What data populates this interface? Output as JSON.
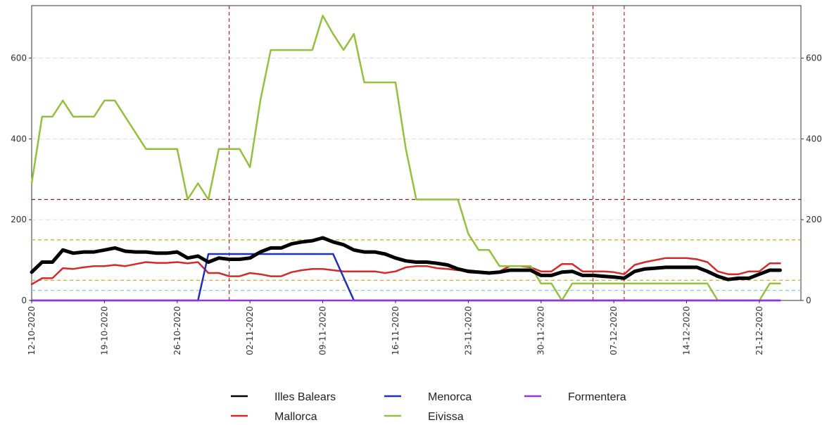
{
  "chart_data": {
    "type": "line",
    "title": "",
    "xlabel": "",
    "ylabel": "",
    "x_start": "2020-10-12",
    "x_end": "2020-12-25",
    "ylim": [
      0,
      730
    ],
    "y_ticks": [
      0,
      200,
      400,
      600
    ],
    "y_tick_labels": [
      "0",
      "200",
      "400",
      "600"
    ],
    "x_ticks": [
      "2020-10-12",
      "2020-10-19",
      "2020-10-26",
      "2020-11-02",
      "2020-11-09",
      "2020-11-16",
      "2020-11-23",
      "2020-11-30",
      "2020-12-07",
      "2020-12-14",
      "2020-12-21"
    ],
    "x_tick_labels": [
      "12-10-2020",
      "19-10-2020",
      "26-10-2020",
      "02-11-2020",
      "09-11-2020",
      "16-11-2020",
      "23-11-2020",
      "30-11-2020",
      "07-12-2020",
      "14-12-2020",
      "21-12-2020"
    ],
    "grid": "horizontal dashed",
    "legend": "bottom",
    "reference_lines_y": [
      {
        "value": 250,
        "color": "#8b1a1a"
      },
      {
        "value": 150,
        "color": "#d4a017"
      },
      {
        "value": 50,
        "color": "#d4a017"
      },
      {
        "value": 25,
        "color": "#7fd6c9"
      }
    ],
    "reference_lines_x": [
      {
        "value": "2020-10-31",
        "color": "#cc2222"
      },
      {
        "value": "2020-12-05",
        "color": "#cc2222"
      },
      {
        "value": "2020-12-08",
        "color": "#cc2222"
      }
    ],
    "series": [
      {
        "name": "Illes Balears",
        "color": "#000000",
        "width": 5,
        "points": [
          [
            "2020-10-12",
            70
          ],
          [
            "2020-10-13",
            95
          ],
          [
            "2020-10-14",
            95
          ],
          [
            "2020-10-15",
            125
          ],
          [
            "2020-10-16",
            117
          ],
          [
            "2020-10-17",
            120
          ],
          [
            "2020-10-18",
            120
          ],
          [
            "2020-10-19",
            125
          ],
          [
            "2020-10-20",
            130
          ],
          [
            "2020-10-21",
            122
          ],
          [
            "2020-10-22",
            120
          ],
          [
            "2020-10-23",
            120
          ],
          [
            "2020-10-24",
            117
          ],
          [
            "2020-10-25",
            117
          ],
          [
            "2020-10-26",
            120
          ],
          [
            "2020-10-27",
            105
          ],
          [
            "2020-10-28",
            110
          ],
          [
            "2020-10-29",
            95
          ],
          [
            "2020-10-30",
            105
          ],
          [
            "2020-10-31",
            102
          ],
          [
            "2020-11-01",
            102
          ],
          [
            "2020-11-02",
            105
          ],
          [
            "2020-11-03",
            120
          ],
          [
            "2020-11-04",
            130
          ],
          [
            "2020-11-05",
            130
          ],
          [
            "2020-11-06",
            140
          ],
          [
            "2020-11-07",
            145
          ],
          [
            "2020-11-08",
            148
          ],
          [
            "2020-11-09",
            155
          ],
          [
            "2020-11-10",
            145
          ],
          [
            "2020-11-11",
            138
          ],
          [
            "2020-11-12",
            125
          ],
          [
            "2020-11-13",
            120
          ],
          [
            "2020-11-14",
            120
          ],
          [
            "2020-11-15",
            115
          ],
          [
            "2020-11-16",
            105
          ],
          [
            "2020-11-17",
            98
          ],
          [
            "2020-11-18",
            95
          ],
          [
            "2020-11-19",
            95
          ],
          [
            "2020-11-20",
            92
          ],
          [
            "2020-11-21",
            88
          ],
          [
            "2020-11-22",
            78
          ],
          [
            "2020-11-23",
            72
          ],
          [
            "2020-11-24",
            70
          ],
          [
            "2020-11-25",
            68
          ],
          [
            "2020-11-26",
            70
          ],
          [
            "2020-11-27",
            75
          ],
          [
            "2020-11-28",
            75
          ],
          [
            "2020-11-29",
            75
          ],
          [
            "2020-11-30",
            62
          ],
          [
            "2020-12-01",
            62
          ],
          [
            "2020-12-02",
            70
          ],
          [
            "2020-12-03",
            72
          ],
          [
            "2020-12-04",
            62
          ],
          [
            "2020-12-05",
            62
          ],
          [
            "2020-12-06",
            60
          ],
          [
            "2020-12-07",
            58
          ],
          [
            "2020-12-08",
            55
          ],
          [
            "2020-12-09",
            72
          ],
          [
            "2020-12-10",
            78
          ],
          [
            "2020-12-11",
            80
          ],
          [
            "2020-12-12",
            82
          ],
          [
            "2020-12-13",
            82
          ],
          [
            "2020-12-14",
            82
          ],
          [
            "2020-12-15",
            82
          ],
          [
            "2020-12-16",
            72
          ],
          [
            "2020-12-17",
            60
          ],
          [
            "2020-12-18",
            52
          ],
          [
            "2020-12-19",
            55
          ],
          [
            "2020-12-20",
            55
          ],
          [
            "2020-12-21",
            65
          ],
          [
            "2020-12-22",
            75
          ],
          [
            "2020-12-23",
            75
          ]
        ]
      },
      {
        "name": "Mallorca",
        "color": "#d42a2a",
        "width": 2.5,
        "points": [
          [
            "2020-10-12",
            40
          ],
          [
            "2020-10-13",
            55
          ],
          [
            "2020-10-14",
            55
          ],
          [
            "2020-10-15",
            80
          ],
          [
            "2020-10-16",
            78
          ],
          [
            "2020-10-17",
            82
          ],
          [
            "2020-10-18",
            85
          ],
          [
            "2020-10-19",
            85
          ],
          [
            "2020-10-20",
            88
          ],
          [
            "2020-10-21",
            85
          ],
          [
            "2020-10-22",
            90
          ],
          [
            "2020-10-23",
            95
          ],
          [
            "2020-10-24",
            93
          ],
          [
            "2020-10-25",
            93
          ],
          [
            "2020-10-26",
            95
          ],
          [
            "2020-10-27",
            92
          ],
          [
            "2020-10-28",
            95
          ],
          [
            "2020-10-29",
            68
          ],
          [
            "2020-10-30",
            68
          ],
          [
            "2020-10-31",
            60
          ],
          [
            "2020-11-01",
            60
          ],
          [
            "2020-11-02",
            68
          ],
          [
            "2020-11-03",
            65
          ],
          [
            "2020-11-04",
            60
          ],
          [
            "2020-11-05",
            60
          ],
          [
            "2020-11-06",
            70
          ],
          [
            "2020-11-07",
            75
          ],
          [
            "2020-11-08",
            78
          ],
          [
            "2020-11-09",
            78
          ],
          [
            "2020-11-10",
            75
          ],
          [
            "2020-11-11",
            72
          ],
          [
            "2020-11-12",
            72
          ],
          [
            "2020-11-13",
            72
          ],
          [
            "2020-11-14",
            72
          ],
          [
            "2020-11-15",
            68
          ],
          [
            "2020-11-16",
            72
          ],
          [
            "2020-11-17",
            82
          ],
          [
            "2020-11-18",
            85
          ],
          [
            "2020-11-19",
            85
          ],
          [
            "2020-11-20",
            80
          ],
          [
            "2020-11-21",
            78
          ],
          [
            "2020-11-22",
            75
          ],
          [
            "2020-11-23",
            75
          ],
          [
            "2020-11-24",
            72
          ],
          [
            "2020-11-25",
            70
          ],
          [
            "2020-11-26",
            72
          ],
          [
            "2020-11-27",
            85
          ],
          [
            "2020-11-28",
            85
          ],
          [
            "2020-11-29",
            82
          ],
          [
            "2020-11-30",
            72
          ],
          [
            "2020-12-01",
            72
          ],
          [
            "2020-12-02",
            90
          ],
          [
            "2020-12-03",
            90
          ],
          [
            "2020-12-04",
            72
          ],
          [
            "2020-12-05",
            72
          ],
          [
            "2020-12-06",
            72
          ],
          [
            "2020-12-07",
            70
          ],
          [
            "2020-12-08",
            65
          ],
          [
            "2020-12-09",
            88
          ],
          [
            "2020-12-10",
            95
          ],
          [
            "2020-12-11",
            100
          ],
          [
            "2020-12-12",
            105
          ],
          [
            "2020-12-13",
            105
          ],
          [
            "2020-12-14",
            105
          ],
          [
            "2020-12-15",
            102
          ],
          [
            "2020-12-16",
            95
          ],
          [
            "2020-12-17",
            72
          ],
          [
            "2020-12-18",
            65
          ],
          [
            "2020-12-19",
            65
          ],
          [
            "2020-12-20",
            72
          ],
          [
            "2020-12-21",
            72
          ],
          [
            "2020-12-22",
            92
          ],
          [
            "2020-12-23",
            92
          ]
        ]
      },
      {
        "name": "Menorca",
        "color": "#1f2fbf",
        "width": 2.5,
        "points": [
          [
            "2020-10-12",
            0
          ],
          [
            "2020-10-28",
            0
          ],
          [
            "2020-10-29",
            115
          ],
          [
            "2020-11-10",
            115
          ],
          [
            "2020-11-12",
            0
          ],
          [
            "2020-12-23",
            0
          ]
        ]
      },
      {
        "name": "Eivissa",
        "color": "#93c13b",
        "width": 2.5,
        "points": [
          [
            "2020-10-12",
            290
          ],
          [
            "2020-10-13",
            455
          ],
          [
            "2020-10-14",
            455
          ],
          [
            "2020-10-15",
            495
          ],
          [
            "2020-10-16",
            455
          ],
          [
            "2020-10-17",
            455
          ],
          [
            "2020-10-18",
            455
          ],
          [
            "2020-10-19",
            495
          ],
          [
            "2020-10-20",
            495
          ],
          [
            "2020-10-21",
            455
          ],
          [
            "2020-10-22",
            415
          ],
          [
            "2020-10-23",
            375
          ],
          [
            "2020-10-24",
            375
          ],
          [
            "2020-10-25",
            375
          ],
          [
            "2020-10-26",
            375
          ],
          [
            "2020-10-27",
            250
          ],
          [
            "2020-10-28",
            290
          ],
          [
            "2020-10-29",
            250
          ],
          [
            "2020-10-30",
            375
          ],
          [
            "2020-10-31",
            375
          ],
          [
            "2020-11-01",
            375
          ],
          [
            "2020-11-02",
            330
          ],
          [
            "2020-11-03",
            495
          ],
          [
            "2020-11-04",
            620
          ],
          [
            "2020-11-05",
            620
          ],
          [
            "2020-11-06",
            620
          ],
          [
            "2020-11-07",
            620
          ],
          [
            "2020-11-08",
            620
          ],
          [
            "2020-11-09",
            705
          ],
          [
            "2020-11-10",
            660
          ],
          [
            "2020-11-11",
            620
          ],
          [
            "2020-11-12",
            660
          ],
          [
            "2020-11-13",
            540
          ],
          [
            "2020-11-14",
            540
          ],
          [
            "2020-11-15",
            540
          ],
          [
            "2020-11-16",
            540
          ],
          [
            "2020-11-17",
            375
          ],
          [
            "2020-11-18",
            250
          ],
          [
            "2020-11-19",
            250
          ],
          [
            "2020-11-20",
            250
          ],
          [
            "2020-11-21",
            250
          ],
          [
            "2020-11-22",
            250
          ],
          [
            "2020-11-23",
            165
          ],
          [
            "2020-11-24",
            125
          ],
          [
            "2020-11-25",
            125
          ],
          [
            "2020-11-26",
            85
          ],
          [
            "2020-11-27",
            85
          ],
          [
            "2020-11-28",
            85
          ],
          [
            "2020-11-29",
            85
          ],
          [
            "2020-11-30",
            42
          ],
          [
            "2020-12-01",
            42
          ],
          [
            "2020-12-02",
            0
          ],
          [
            "2020-12-03",
            42
          ],
          [
            "2020-12-04",
            42
          ],
          [
            "2020-12-05",
            42
          ],
          [
            "2020-12-06",
            42
          ],
          [
            "2020-12-07",
            42
          ],
          [
            "2020-12-08",
            42
          ],
          [
            "2020-12-09",
            42
          ],
          [
            "2020-12-10",
            42
          ],
          [
            "2020-12-11",
            42
          ],
          [
            "2020-12-12",
            42
          ],
          [
            "2020-12-13",
            42
          ],
          [
            "2020-12-14",
            42
          ],
          [
            "2020-12-15",
            42
          ],
          [
            "2020-12-16",
            42
          ],
          [
            "2020-12-17",
            0
          ],
          [
            "2020-12-18",
            0
          ],
          [
            "2020-12-19",
            0
          ],
          [
            "2020-12-20",
            0
          ],
          [
            "2020-12-21",
            0
          ],
          [
            "2020-12-22",
            42
          ],
          [
            "2020-12-23",
            42
          ]
        ]
      },
      {
        "name": "Formentera",
        "color": "#9b30e0",
        "width": 2.5,
        "points": [
          [
            "2020-10-12",
            0
          ],
          [
            "2020-12-23",
            0
          ]
        ]
      }
    ]
  }
}
